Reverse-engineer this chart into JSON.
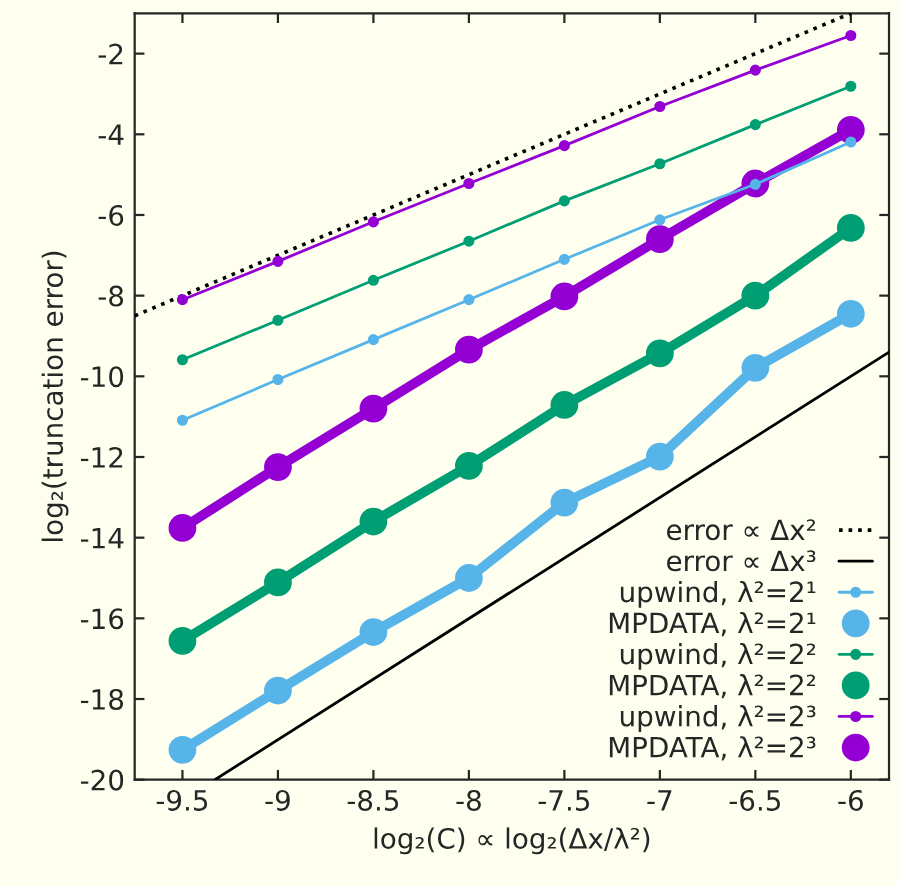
{
  "chart_data": {
    "type": "line",
    "xlabel": "log₂(C) ∝ log₂(Δx/λ²)",
    "ylabel": "log₂(truncation error)",
    "xlim": [
      -9.75,
      -5.8
    ],
    "ylim": [
      -20,
      -1
    ],
    "xticks": [
      -9.5,
      -9,
      -8.5,
      -8,
      -7.5,
      -7,
      -6.5,
      -6
    ],
    "yticks": [
      -20,
      -18,
      -16,
      -14,
      -12,
      -10,
      -8,
      -6,
      -4,
      -2
    ],
    "x": [
      -9.5,
      -9,
      -8.5,
      -8,
      -7.5,
      -7,
      -6.5,
      -6
    ],
    "legend": "bottom right",
    "grid": false,
    "series": [
      {
        "name": "error ∝ Δx²",
        "color": "#000000",
        "x": [
          -9.75,
          -6
        ],
        "values": [
          -8.5,
          -1.0
        ],
        "line_style": "dotted",
        "marker": "none"
      },
      {
        "name": "error ∝ Δx³",
        "color": "#000000",
        "x": [
          -9.33,
          -5.8
        ],
        "values": [
          -20,
          -9.4
        ],
        "line_style": "solid",
        "marker": "none"
      },
      {
        "name": "upwind, λ²=2¹",
        "color": "#56b4e9",
        "values": [
          -11.09,
          -10.08,
          -9.09,
          -8.1,
          -7.1,
          -6.12,
          -5.24,
          -4.19
        ],
        "line_style": "solid",
        "marker": "circle"
      },
      {
        "name": "MPDATA, λ²=2¹",
        "color": "#56b4e9",
        "values": [
          -19.26,
          -17.79,
          -16.34,
          -15.0,
          -13.13,
          -11.99,
          -9.79,
          -8.45
        ],
        "line_style": "solid",
        "marker": "circle"
      },
      {
        "name": "upwind, λ²=2²",
        "color": "#009e73",
        "values": [
          -9.59,
          -8.61,
          -7.62,
          -6.65,
          -5.65,
          -4.73,
          -3.76,
          -2.81
        ],
        "line_style": "solid",
        "marker": "circle"
      },
      {
        "name": "MPDATA, λ²=2²",
        "color": "#009e73",
        "values": [
          -16.56,
          -15.11,
          -13.6,
          -12.22,
          -10.71,
          -9.43,
          -8.0,
          -6.32
        ],
        "line_style": "solid",
        "marker": "circle"
      },
      {
        "name": "upwind, λ²=2³",
        "color": "#9400d3",
        "values": [
          -8.1,
          -7.15,
          -6.17,
          -5.22,
          -4.28,
          -3.31,
          -2.41,
          -1.55
        ],
        "line_style": "solid",
        "marker": "circle"
      },
      {
        "name": "MPDATA, λ²=2³",
        "color": "#9400d3",
        "values": [
          -13.76,
          -12.25,
          -10.8,
          -9.34,
          -8.02,
          -6.6,
          -5.22,
          -3.89
        ],
        "line_style": "solid",
        "marker": "circle"
      }
    ]
  }
}
